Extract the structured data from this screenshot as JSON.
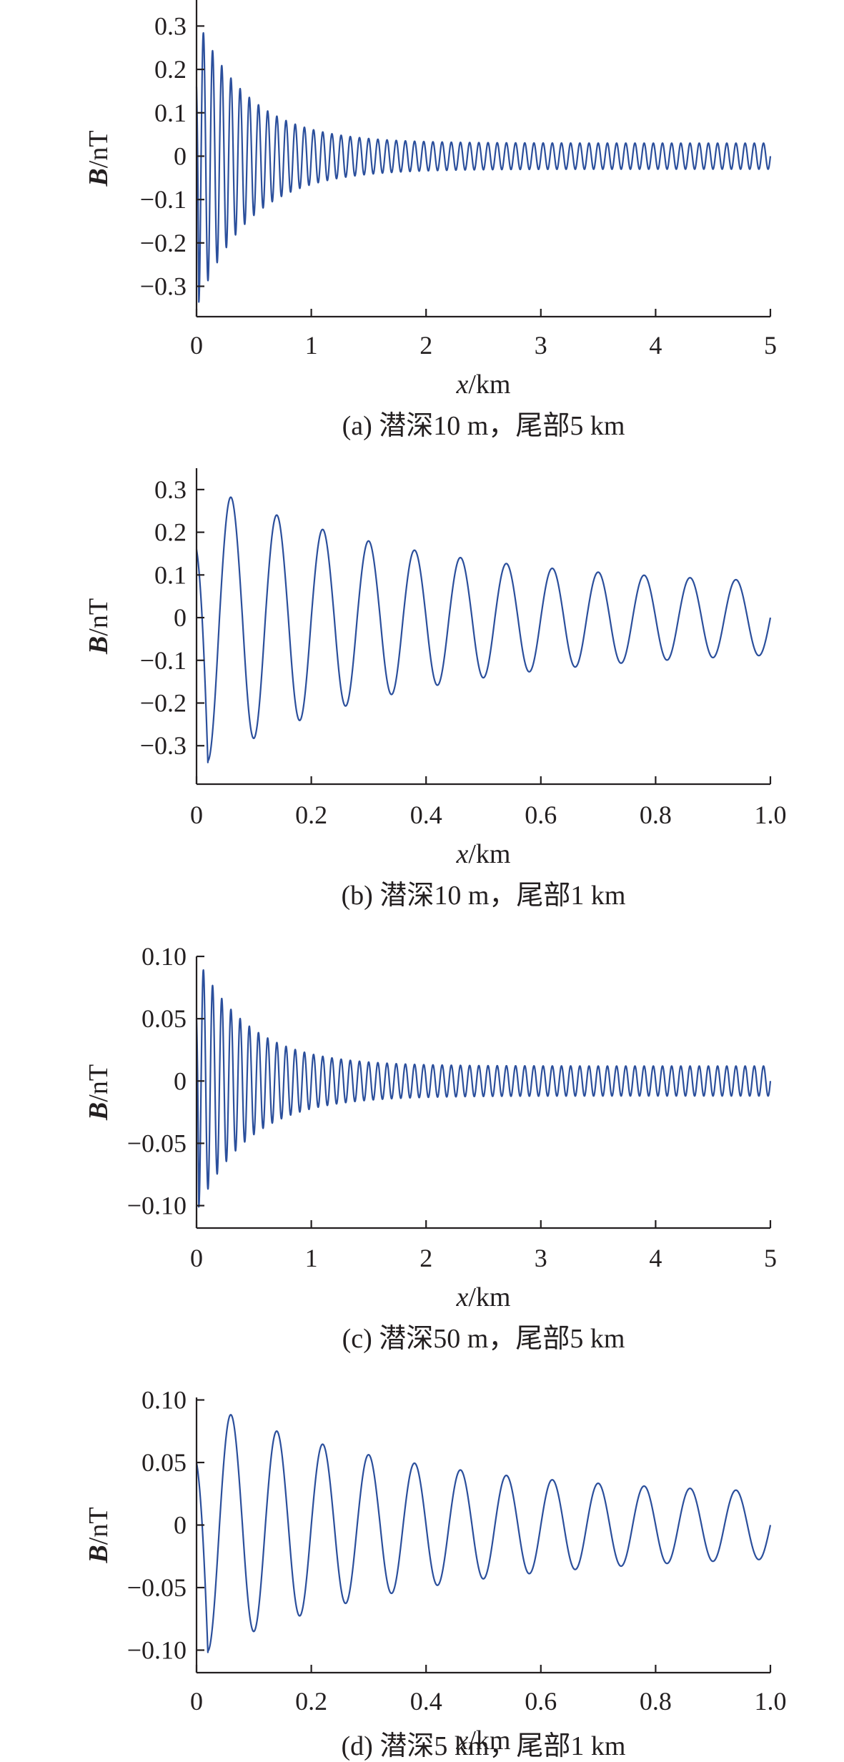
{
  "figure": {
    "colors": {
      "trace": "#2b4f9c",
      "axis": "#231f20"
    }
  },
  "chart_data": [
    {
      "type": "line",
      "caption": "(a) 潜深10 m，尾部5 km",
      "ylabel_bold": "B",
      "ylabel_unit": "/nT",
      "xlabel_italic": "x",
      "xlabel_unit": "/km",
      "xlim": [
        0,
        5
      ],
      "ylim": [
        -0.37,
        0.36
      ],
      "xticks": [
        0,
        1,
        2,
        3,
        4,
        5
      ],
      "xtick_labels": [
        "0",
        "1",
        "2",
        "3",
        "4",
        "5"
      ],
      "yticks": [
        -0.3,
        -0.2,
        -0.1,
        0,
        0.1,
        0.2,
        0.3
      ],
      "ytick_labels": [
        "−0.3",
        "−0.2",
        "−0.1",
        "0",
        "0.1",
        "0.2",
        "0.3"
      ],
      "series": [
        {
          "wavelength_km": 0.08,
          "phase_offset_km": 0.02,
          "min_value": -0.35,
          "first_peak_value": 0.32,
          "tail_amplitude": 0.03,
          "decay_km": 0.25,
          "x_end": 5
        }
      ]
    },
    {
      "type": "line",
      "caption": "(b) 潜深10 m，尾部1 km",
      "ylabel_bold": "B",
      "ylabel_unit": "/nT",
      "xlabel_italic": "x",
      "xlabel_unit": "/km",
      "xlim": [
        0,
        1.0
      ],
      "ylim": [
        -0.39,
        0.35
      ],
      "xticks": [
        0,
        0.2,
        0.4,
        0.6,
        0.8,
        1.0
      ],
      "xtick_labels": [
        "0",
        "0.2",
        "0.4",
        "0.6",
        "0.8",
        "1.0"
      ],
      "yticks": [
        -0.3,
        -0.2,
        -0.1,
        0,
        0.1,
        0.2,
        0.3
      ],
      "ytick_labels": [
        "−0.3",
        "−0.2",
        "−0.1",
        "0",
        "0.1",
        "0.2",
        "0.3"
      ],
      "series": [
        {
          "wavelength_km": 0.08,
          "phase_offset_km": 0.02,
          "min_value": -0.35,
          "first_peak_value": 0.32,
          "tail_amplitude": 0.07,
          "decay_km": 0.2,
          "x_end": 1.0
        }
      ]
    },
    {
      "type": "line",
      "caption": "(c) 潜深50 m，尾部5 km",
      "ylabel_bold": "B",
      "ylabel_unit": "/nT",
      "xlabel_italic": "x",
      "xlabel_unit": "/km",
      "xlim": [
        0,
        5
      ],
      "ylim": [
        -0.118,
        0.1
      ],
      "xticks": [
        0,
        1,
        2,
        3,
        4,
        5
      ],
      "xtick_labels": [
        "0",
        "1",
        "2",
        "3",
        "4",
        "5"
      ],
      "yticks": [
        -0.1,
        -0.05,
        0,
        0.05,
        0.1
      ],
      "ytick_labels": [
        "−0.10",
        "−0.05",
        "0",
        "0.05",
        "0.10"
      ],
      "series": [
        {
          "wavelength_km": 0.08,
          "phase_offset_km": 0.02,
          "min_value": -0.105,
          "first_peak_value": 0.1,
          "tail_amplitude": 0.012,
          "decay_km": 0.25,
          "x_end": 5
        }
      ]
    },
    {
      "type": "line",
      "caption": "(d) 潜深5 km，尾部1 km",
      "ylabel_bold": "B",
      "ylabel_unit": "/nT",
      "xlabel_italic": "x",
      "xlabel_unit": "/km",
      "xlim": [
        0,
        1.0
      ],
      "ylim": [
        -0.118,
        0.102
      ],
      "xticks": [
        0,
        0.2,
        0.4,
        0.6,
        0.8,
        1.0
      ],
      "xtick_labels": [
        "0",
        "0.2",
        "0.4",
        "0.6",
        "0.8",
        "1.0"
      ],
      "yticks": [
        -0.1,
        -0.05,
        0,
        0.05,
        0.1
      ],
      "ytick_labels": [
        "−0.10",
        "−0.05",
        "0",
        "0.05",
        "0.10"
      ],
      "series": [
        {
          "wavelength_km": 0.08,
          "phase_offset_km": 0.02,
          "min_value": -0.105,
          "first_peak_value": 0.1,
          "tail_amplitude": 0.022,
          "decay_km": 0.2,
          "x_end": 1.0
        }
      ]
    }
  ]
}
